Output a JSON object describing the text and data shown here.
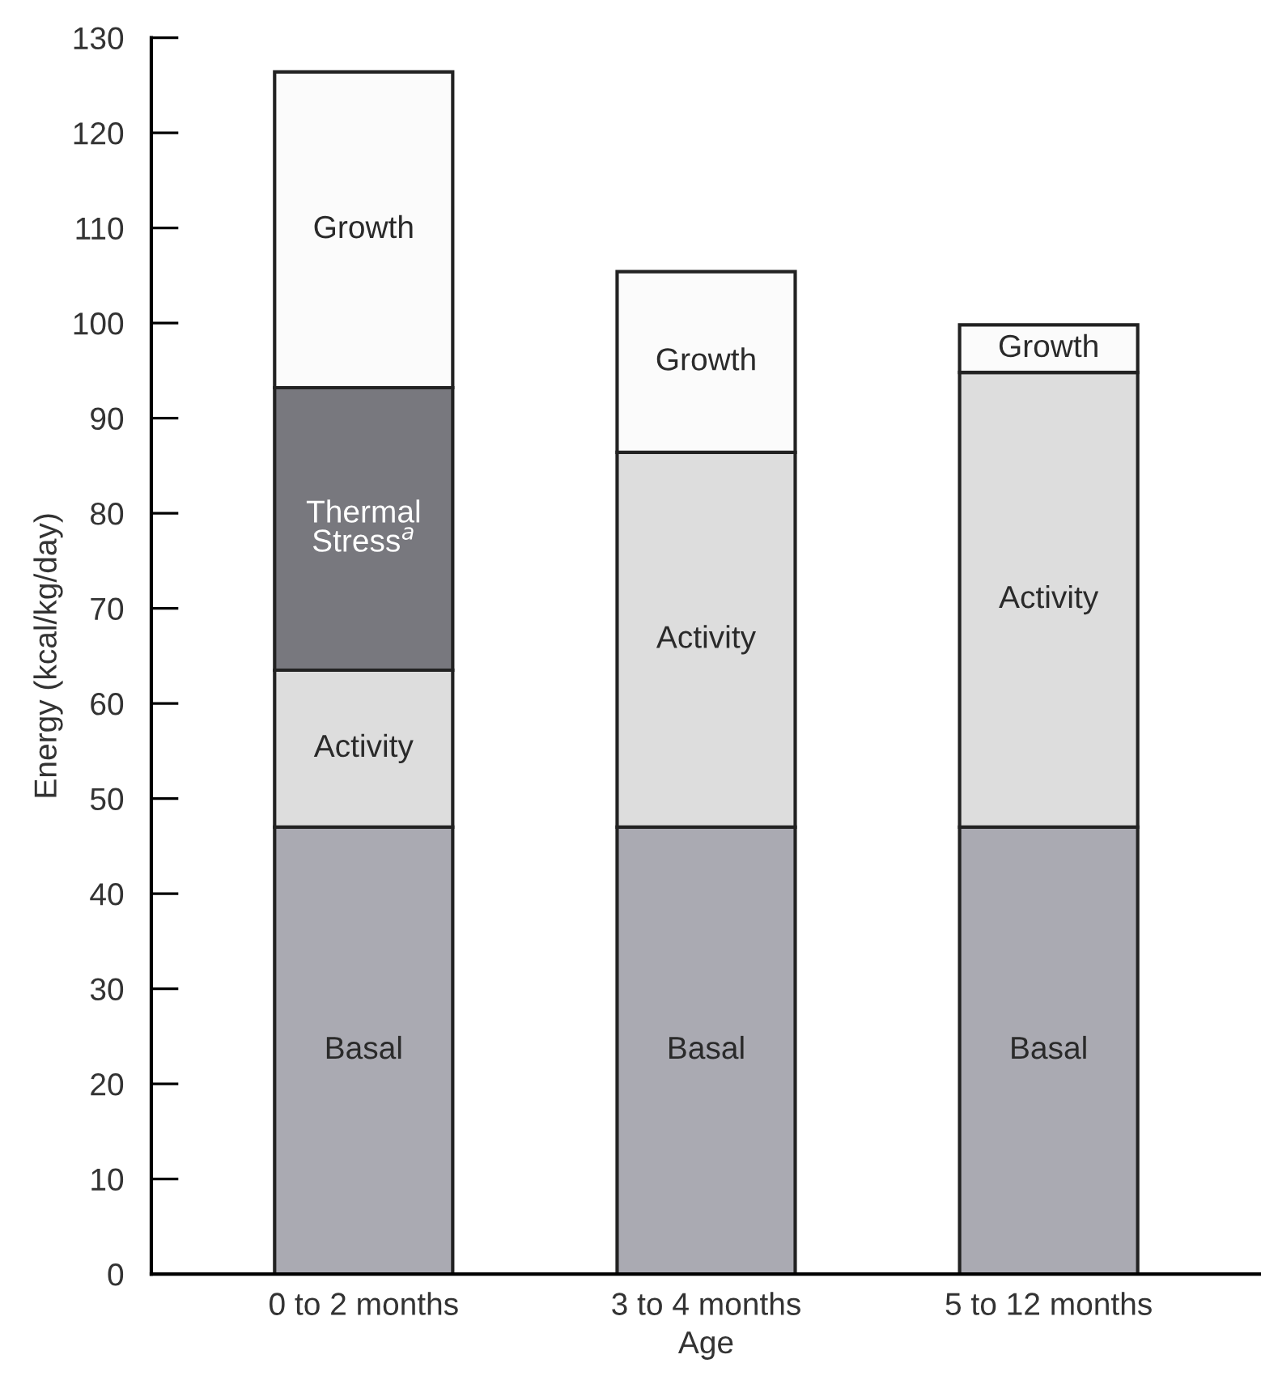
{
  "chart_data": {
    "type": "bar",
    "stacked": true,
    "xlabel": "Age",
    "ylabel": "Energy (kcal/kg/day)",
    "categories": [
      "0 to 2 months",
      "3 to 4 months",
      "5 to 12 months"
    ],
    "series": [
      {
        "name": "Basal",
        "color": "#aaaab2",
        "values": [
          47,
          47,
          47
        ]
      },
      {
        "name": "Activity",
        "color": "#dddddd",
        "values": [
          16.5,
          39.4,
          47.8
        ]
      },
      {
        "name": "Thermal Stress$^{a}$",
        "color": "#78787e",
        "values": [
          29.7,
          null,
          null
        ]
      },
      {
        "name": "Growth",
        "color": "#fbfbfb",
        "values": [
          33.2,
          19,
          5
        ]
      }
    ],
    "ylim": [
      0,
      130
    ],
    "yticks": [
      0,
      10,
      20,
      30,
      40,
      50,
      60,
      70,
      80,
      90,
      100,
      110,
      120,
      130
    ],
    "grid": false,
    "legend": false
  }
}
